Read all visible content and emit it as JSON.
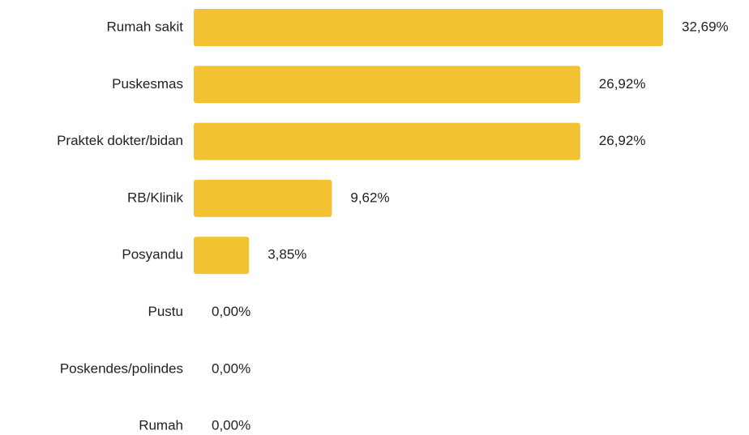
{
  "chart_data": {
    "type": "bar",
    "orientation": "horizontal",
    "categories": [
      "Rumah sakit",
      "Puskesmas",
      "Praktek dokter/bidan",
      "RB/Klinik",
      "Posyandu",
      "Pustu",
      "Poskendes/polindes",
      "Rumah"
    ],
    "values": [
      32.69,
      26.92,
      26.92,
      9.62,
      3.85,
      0,
      0,
      0
    ],
    "value_labels": [
      "32,69%",
      "26,92%",
      "26,92%",
      "9,62%",
      "3,85%",
      "0,00%",
      "0,00%",
      "0,00%"
    ],
    "color": "#f2c232"
  }
}
